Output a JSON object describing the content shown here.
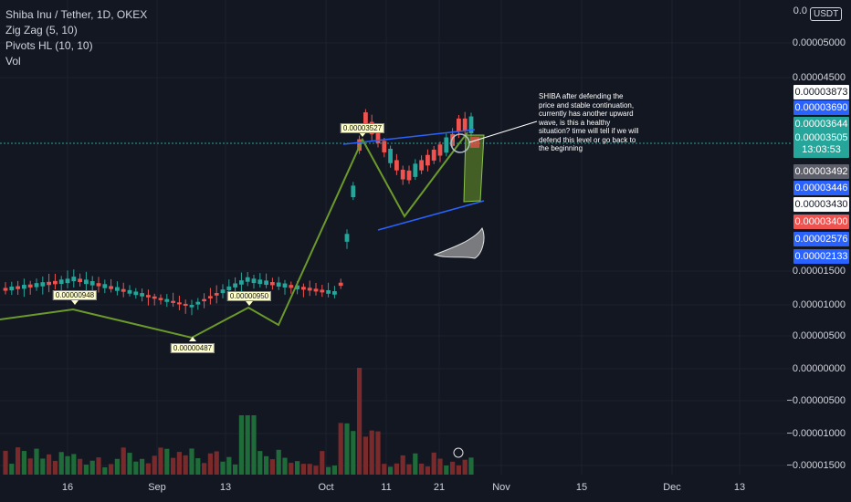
{
  "legend": {
    "symbol": "Shiba Inu / Tether, 1D, OKEX",
    "zigzag": "Zig Zag (5, 10)",
    "pivots": "Pivots HL (10, 10)",
    "vol": "Vol"
  },
  "currency_button": "USDT",
  "annotation": "SHIBA after defending the price and stable continuation, currently has another upward wave, is this a healthy situation? time will tell if we will defend this level or go back to the beginning",
  "zigzag_labels": [
    "0.00000948",
    "0.00000487",
    "0.00000950",
    "0.00003527"
  ],
  "colors": {
    "background": "#131722",
    "up": "#26a69a",
    "down": "#ef5350",
    "zigzag": "#6b9a2a",
    "channel": "#2962ff",
    "volume_up": "#1f6b3a",
    "volume_down": "#7a2a2a"
  },
  "chart_data": {
    "type": "candlestick",
    "title": "Shiba Inu / Tether, 1D, OKEX",
    "x_ticks": [
      "16",
      "Sep",
      "13",
      "Oct",
      "11",
      "21",
      "Nov",
      "15",
      "Dec",
      "13"
    ],
    "y_ticks": [
      "0.00005000",
      "0.00004500",
      "0.00001500",
      "0.00001000",
      "0.00000500",
      "0.00000000",
      "−0.00000500",
      "−0.00001000",
      "−0.00001500"
    ],
    "y_top_partial": "0.0",
    "price_badges": [
      {
        "value": "0.00003873",
        "color": "#ffffff",
        "text": "#131722"
      },
      {
        "value": "0.00003690",
        "color": "#2962ff",
        "text": "#ffffff"
      },
      {
        "value": "0.00003644",
        "color": "#26a69a",
        "text": "#ffffff"
      },
      {
        "value": "0.00003505",
        "color": "#26a69a",
        "text": "#ffffff",
        "sub": "13:03:53"
      },
      {
        "value": "0.00003492",
        "color": "#5d606b",
        "text": "#ffffff"
      },
      {
        "value": "0.00003446",
        "color": "#2962ff",
        "text": "#ffffff"
      },
      {
        "value": "0.00003430",
        "color": "#ffffff",
        "text": "#131722"
      },
      {
        "value": "0.00003400",
        "color": "#ef5350",
        "text": "#ffffff"
      },
      {
        "value": "0.00002576",
        "color": "#2962ff",
        "text": "#ffffff"
      },
      {
        "value": "0.00002133",
        "color": "#2962ff",
        "text": "#ffffff"
      }
    ],
    "zigzag_points": [
      {
        "date": "Aug 16",
        "price": 9.48e-06
      },
      {
        "date": "Sep 8",
        "price": 4.87e-06
      },
      {
        "date": "Sep 13",
        "price": 9.5e-06
      },
      {
        "date": "Sep 27",
        "price": 6.9e-06
      },
      {
        "date": "Oct 7",
        "price": 3.527e-05
      },
      {
        "date": "Oct 17",
        "price": 2.35e-05
      },
      {
        "date": "Oct 23",
        "price": 3.38e-05
      }
    ],
    "current_price": 3.505e-05,
    "countdown": "13:03:53",
    "grid": true
  }
}
